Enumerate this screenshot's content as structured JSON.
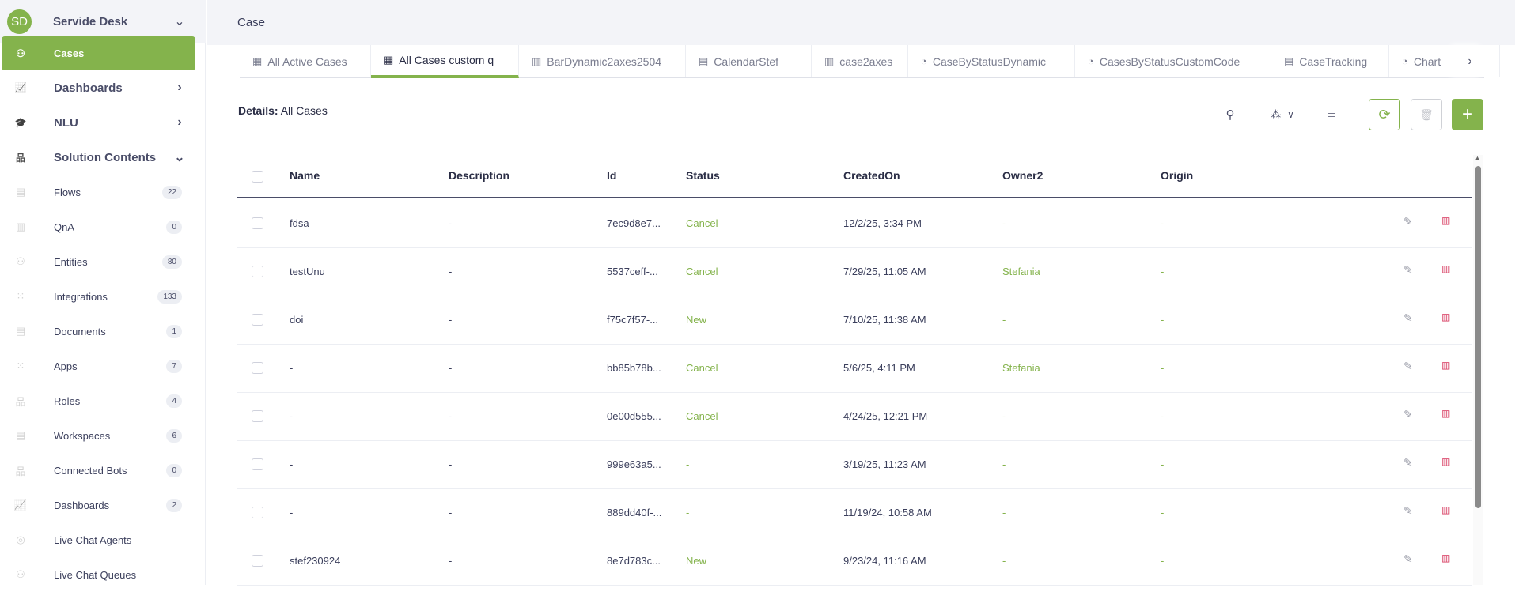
{
  "sidebar": {
    "avatar": "SD",
    "title": "Servide Desk",
    "active": {
      "label": "Cases",
      "icon": "cases-icon"
    },
    "main_items": [
      {
        "label": "Dashboards",
        "icon": "dashboard-icon",
        "chevron": "›"
      },
      {
        "label": "NLU",
        "icon": "graduation-cap-icon",
        "chevron": "›"
      },
      {
        "label": "Solution Contents",
        "icon": "hierarchy-icon",
        "chevron": "⌄"
      }
    ],
    "items": [
      {
        "label": "Flows",
        "count": "22"
      },
      {
        "label": "QnA",
        "count": "0"
      },
      {
        "label": "Entities",
        "count": "80"
      },
      {
        "label": "Integrations",
        "count": "133"
      },
      {
        "label": "Documents",
        "count": "1"
      },
      {
        "label": "Apps",
        "count": "7"
      },
      {
        "label": "Roles",
        "count": "4"
      },
      {
        "label": "Workspaces",
        "count": "6"
      },
      {
        "label": "Connected Bots",
        "count": "0"
      },
      {
        "label": "Dashboards",
        "count": "2"
      },
      {
        "label": "Live Chat Agents"
      },
      {
        "label": "Live Chat Queues"
      }
    ]
  },
  "header": {
    "title": "Case"
  },
  "tabs": [
    {
      "label": "All Active Cases",
      "icon": "grid-icon"
    },
    {
      "label": "All Cases custom q",
      "icon": "grid-icon",
      "active": true
    },
    {
      "label": "BarDynamic2axes2504",
      "icon": "bar-chart-icon"
    },
    {
      "label": "CalendarStef",
      "icon": "calendar-icon"
    },
    {
      "label": "case2axes",
      "icon": "bar-chart-icon"
    },
    {
      "label": "CaseByStatusDynamic",
      "icon": "pie-chart-icon"
    },
    {
      "label": "CasesByStatusCustomCode",
      "icon": "pie-chart-icon"
    },
    {
      "label": "CaseTracking",
      "icon": "calendar-icon"
    },
    {
      "label": "Chart",
      "icon": "pie-chart-icon"
    }
  ],
  "details": {
    "label": "Details:",
    "value": "All Cases"
  },
  "colors": {
    "accent": "#84b34c",
    "delete": "#d6335a",
    "text": "#3b3f5c"
  },
  "table": {
    "columns": [
      "Name",
      "Description",
      "Id",
      "Status",
      "CreatedOn",
      "Owner2",
      "Origin"
    ],
    "rows": [
      [
        "fdsa",
        "-",
        "7ec9d8e7...",
        "Cancel",
        "12/2/25, 3:34 PM",
        "-",
        "-"
      ],
      [
        "testUnu",
        "-",
        "5537ceff-...",
        "Cancel",
        "7/29/25, 11:05 AM",
        "Stefania",
        "-"
      ],
      [
        "doi",
        "-",
        "f75c7f57-...",
        "New",
        "7/10/25, 11:38 AM",
        "-",
        "-"
      ],
      [
        "-",
        "-",
        "bb85b78b...",
        "Cancel",
        "5/6/25, 4:11 PM",
        "Stefania",
        "-"
      ],
      [
        "-",
        "-",
        "0e00d555...",
        "Cancel",
        "4/24/25, 12:21 PM",
        "-",
        "-"
      ],
      [
        "-",
        "-",
        "999e63a5...",
        "-",
        "3/19/25, 11:23 AM",
        "-",
        "-"
      ],
      [
        "-",
        "-",
        "889dd40f-...",
        "-",
        "11/19/24, 10:58 AM",
        "-",
        "-"
      ],
      [
        "stef230924",
        "-",
        "8e7d783c...",
        "New",
        "9/23/24, 11:16 AM",
        "-",
        "-"
      ]
    ]
  }
}
